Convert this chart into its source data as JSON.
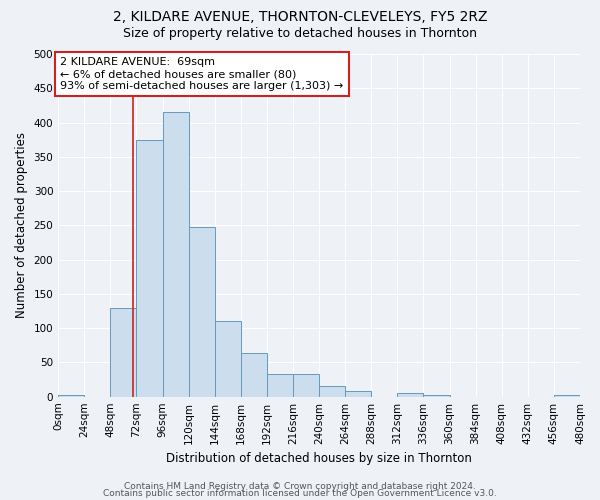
{
  "title1": "2, KILDARE AVENUE, THORNTON-CLEVELEYS, FY5 2RZ",
  "title2": "Size of property relative to detached houses in Thornton",
  "xlabel": "Distribution of detached houses by size in Thornton",
  "ylabel": "Number of detached properties",
  "bar_values": [
    3,
    0,
    130,
    375,
    415,
    247,
    110,
    64,
    33,
    33,
    15,
    8,
    0,
    5,
    2,
    0,
    0,
    0,
    0,
    3
  ],
  "bin_edges": [
    0,
    24,
    48,
    72,
    96,
    120,
    144,
    168,
    192,
    216,
    240,
    264,
    288,
    312,
    336,
    360,
    384,
    408,
    432,
    456,
    480
  ],
  "xlabels": [
    "0sqm",
    "24sqm",
    "48sqm",
    "72sqm",
    "96sqm",
    "120sqm",
    "144sqm",
    "168sqm",
    "192sqm",
    "216sqm",
    "240sqm",
    "264sqm",
    "288sqm",
    "312sqm",
    "336sqm",
    "360sqm",
    "384sqm",
    "408sqm",
    "432sqm",
    "456sqm",
    "480sqm"
  ],
  "bar_color": "#ccdded",
  "bar_edge_color": "#6699bb",
  "vline_x": 69,
  "vline_color": "#cc2222",
  "ylim": [
    0,
    500
  ],
  "yticks": [
    0,
    50,
    100,
    150,
    200,
    250,
    300,
    350,
    400,
    450,
    500
  ],
  "annotation_text": "2 KILDARE AVENUE:  69sqm\n← 6% of detached houses are smaller (80)\n93% of semi-detached houses are larger (1,303) →",
  "annotation_box_color": "#ffffff",
  "annotation_box_edge_color": "#cc2222",
  "footer1": "Contains HM Land Registry data © Crown copyright and database right 2024.",
  "footer2": "Contains public sector information licensed under the Open Government Licence v3.0.",
  "bg_color": "#eef2f7",
  "plot_bg_color": "#eef2f7",
  "grid_color": "#ffffff",
  "title1_fontsize": 10,
  "title2_fontsize": 9,
  "label_fontsize": 8.5,
  "tick_fontsize": 7.5,
  "footer_fontsize": 6.5,
  "annotation_fontsize": 8
}
